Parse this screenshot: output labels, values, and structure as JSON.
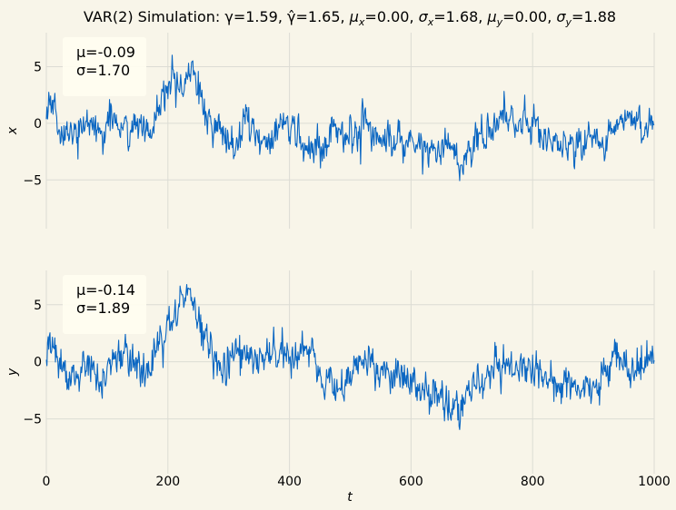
{
  "chart_data": {
    "type": "line",
    "title": "VAR(2) Simulation: γ=1.59, γ̂=1.65, μx=0.00, σx=1.68, μy=0.00, σy=1.88",
    "title_parts": {
      "prefix": "VAR(2) Simulation: γ=1.59, ",
      "gamma_hat": "γ̂=1.65",
      "mu_x_sym": "μ",
      "mu_x_sub": "x",
      "mu_x_val": "=0.00",
      "sigma_x_sym": "σ",
      "sigma_x_sub": "x",
      "sigma_x_val": "=1.68",
      "mu_y_sym": "μ",
      "mu_y_sub": "y",
      "mu_y_val": "=0.00",
      "sigma_y_sym": "σ",
      "sigma_y_sub": "y",
      "sigma_y_val": "=1.88"
    },
    "xlabel": "t",
    "xlim": [
      0,
      1000
    ],
    "x_ticks": [
      "0",
      "200",
      "400",
      "600",
      "800",
      "1000"
    ],
    "line_color": "#0a66c2",
    "background": "#f8f5e9",
    "grid": true,
    "panels": [
      {
        "ylabel": "x",
        "ylim": [
          -9.3,
          8.0
        ],
        "y_ticks": [
          "5",
          "0",
          "−5"
        ],
        "stats": {
          "mu": "μ=-0.09",
          "sigma": "σ=1.70"
        },
        "anchors": [
          [
            0,
            0.6
          ],
          [
            10,
            1.5
          ],
          [
            20,
            0
          ],
          [
            30,
            -1
          ],
          [
            50,
            -0.5
          ],
          [
            70,
            0.2
          ],
          [
            90,
            -1
          ],
          [
            110,
            0.6
          ],
          [
            130,
            -0.4
          ],
          [
            150,
            0
          ],
          [
            170,
            -1
          ],
          [
            180,
            0.3
          ],
          [
            190,
            2
          ],
          [
            205,
            3
          ],
          [
            215,
            3.5
          ],
          [
            225,
            3
          ],
          [
            235,
            4.5
          ],
          [
            245,
            3.5
          ],
          [
            255,
            2
          ],
          [
            265,
            0.5
          ],
          [
            280,
            0
          ],
          [
            300,
            -1.5
          ],
          [
            315,
            -1.8
          ],
          [
            330,
            1
          ],
          [
            350,
            -1.5
          ],
          [
            370,
            -2
          ],
          [
            390,
            0
          ],
          [
            410,
            -1
          ],
          [
            430,
            -2
          ],
          [
            450,
            -1.8
          ],
          [
            470,
            -1
          ],
          [
            490,
            -0.5
          ],
          [
            510,
            -1.5
          ],
          [
            520,
            1
          ],
          [
            540,
            -0.8
          ],
          [
            560,
            -1.5
          ],
          [
            580,
            -1.4
          ],
          [
            600,
            -1.5
          ],
          [
            620,
            -2
          ],
          [
            640,
            -2.5
          ],
          [
            660,
            -2.2
          ],
          [
            670,
            -2.5
          ],
          [
            680,
            -4
          ],
          [
            690,
            -3.5
          ],
          [
            700,
            -2
          ],
          [
            715,
            -0.5
          ],
          [
            730,
            -1
          ],
          [
            750,
            0.5
          ],
          [
            770,
            -0.5
          ],
          [
            790,
            0.5
          ],
          [
            800,
            -0.3
          ],
          [
            820,
            -1.5
          ],
          [
            840,
            -1.2
          ],
          [
            860,
            -1.8
          ],
          [
            880,
            -2
          ],
          [
            900,
            -1.3
          ],
          [
            920,
            -1.5
          ],
          [
            940,
            0
          ],
          [
            960,
            0.3
          ],
          [
            980,
            -0.5
          ],
          [
            1000,
            0.5
          ]
        ]
      },
      {
        "ylabel": "y",
        "ylim": [
          -9.8,
          8.0
        ],
        "y_ticks": [
          "5",
          "0",
          "−5"
        ],
        "stats": {
          "mu": "μ=-0.14",
          "sigma": "σ=1.89"
        },
        "anchors": [
          [
            0,
            0.5
          ],
          [
            10,
            2
          ],
          [
            20,
            -0.5
          ],
          [
            30,
            -1.2
          ],
          [
            50,
            -1.5
          ],
          [
            70,
            0
          ],
          [
            90,
            -1.5
          ],
          [
            110,
            0
          ],
          [
            130,
            1
          ],
          [
            150,
            -0.5
          ],
          [
            170,
            -0.5
          ],
          [
            180,
            1
          ],
          [
            195,
            2.5
          ],
          [
            215,
            4
          ],
          [
            225,
            5.5
          ],
          [
            235,
            6
          ],
          [
            245,
            4.5
          ],
          [
            255,
            3
          ],
          [
            270,
            1
          ],
          [
            285,
            0
          ],
          [
            300,
            0
          ],
          [
            320,
            1
          ],
          [
            340,
            0.8
          ],
          [
            360,
            0.3
          ],
          [
            380,
            1
          ],
          [
            400,
            0.8
          ],
          [
            420,
            1
          ],
          [
            440,
            0.8
          ],
          [
            445,
            -1.2
          ],
          [
            460,
            -2
          ],
          [
            480,
            -2.2
          ],
          [
            500,
            -1.5
          ],
          [
            520,
            0
          ],
          [
            540,
            -0.5
          ],
          [
            560,
            -1.5
          ],
          [
            580,
            -1.5
          ],
          [
            600,
            -2
          ],
          [
            620,
            -2.5
          ],
          [
            640,
            -3
          ],
          [
            660,
            -3.5
          ],
          [
            680,
            -4
          ],
          [
            690,
            -3.2
          ],
          [
            700,
            -2.2
          ],
          [
            720,
            -1.8
          ],
          [
            740,
            -0.5
          ],
          [
            760,
            0
          ],
          [
            780,
            -0.5
          ],
          [
            800,
            0
          ],
          [
            820,
            -1.5
          ],
          [
            840,
            -2
          ],
          [
            860,
            -2.2
          ],
          [
            880,
            -2
          ],
          [
            900,
            -2.5
          ],
          [
            920,
            -1.5
          ],
          [
            940,
            0.5
          ],
          [
            960,
            -1
          ],
          [
            980,
            -0.5
          ],
          [
            1000,
            0.5
          ]
        ]
      }
    ]
  }
}
